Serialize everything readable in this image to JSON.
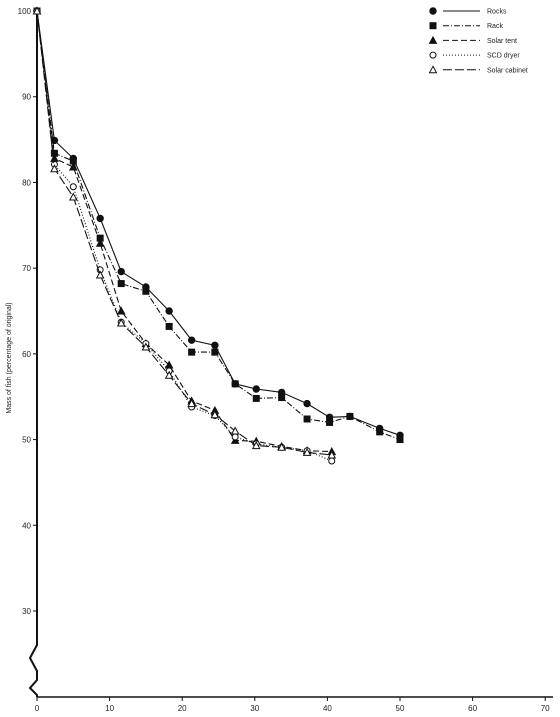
{
  "chart_data": {
    "type": "line",
    "title": "",
    "xlabel": "",
    "ylabel": "Mass of fish (percentage of original)",
    "xlim": [
      0,
      70
    ],
    "ylim": [
      20,
      100
    ],
    "y_axis_break": true,
    "x_ticks": [
      "0",
      "10",
      "20",
      "30",
      "40",
      "50",
      "60",
      "70"
    ],
    "y_ticks": [
      "30",
      "40",
      "50",
      "60",
      "70",
      "80",
      "90",
      "100"
    ],
    "y_tick_values": [
      30,
      40,
      50,
      60,
      70,
      80,
      90,
      100
    ],
    "x_tick_values": [
      0,
      10,
      20,
      30,
      40,
      50,
      60,
      70
    ],
    "grid": false,
    "legend_position": "top-right",
    "series": [
      {
        "name": "Rocks",
        "marker": "circle-filled",
        "dash": "solid",
        "x": [
          0,
          2.4,
          5,
          8.7,
          11.6,
          15,
          18.2,
          21.3,
          24.5,
          27.3,
          30.2,
          33.7,
          37.2,
          40.3,
          43.1,
          47.2,
          50
        ],
        "y": [
          100,
          84.9,
          82.8,
          75.8,
          69.6,
          67.8,
          65.0,
          61.6,
          61.0,
          56.5,
          55.9,
          55.5,
          54.2,
          52.6,
          52.7,
          51.3,
          50.5
        ]
      },
      {
        "name": "Rack",
        "marker": "square-filled",
        "dash": "dashdot",
        "x": [
          0,
          2.4,
          5,
          8.7,
          11.6,
          15,
          18.2,
          21.3,
          24.5,
          27.3,
          30.2,
          33.7,
          37.2,
          40.3,
          43.1,
          47.2,
          50
        ],
        "y": [
          100,
          83.4,
          82.5,
          73.5,
          68.2,
          67.3,
          63.2,
          60.2,
          60.2,
          56.5,
          54.8,
          54.9,
          52.4,
          52.0,
          52.7,
          50.9,
          50.0
        ]
      },
      {
        "name": "Solar tent",
        "marker": "triangle-filled",
        "dash": "dashed",
        "x": [
          0,
          2.4,
          5,
          8.7,
          11.6,
          15,
          18.2,
          21.3,
          24.5,
          27.3,
          30.2,
          33.7,
          37.2,
          40.6
        ],
        "y": [
          100,
          82.8,
          81.8,
          72.9,
          65.0,
          61.2,
          58.7,
          54.5,
          53.4,
          49.9,
          49.8,
          49.2,
          48.7,
          48.6
        ]
      },
      {
        "name": "SCD dryer",
        "marker": "circle-open",
        "dash": "dotted",
        "x": [
          0,
          2.4,
          5,
          8.7,
          11.6,
          15,
          18.2,
          21.3,
          24.5,
          27.3,
          30.2,
          33.7,
          37.2,
          40.6
        ],
        "y": [
          100,
          82.1,
          79.5,
          69.8,
          63.7,
          61.2,
          58.0,
          53.8,
          52.8,
          50.3,
          49.5,
          49.1,
          48.7,
          47.5
        ]
      },
      {
        "name": "Solar cabinet",
        "marker": "triangle-open",
        "dash": "longdash",
        "x": [
          0,
          2.4,
          5,
          8.7,
          11.6,
          15,
          18.2,
          21.3,
          24.5,
          27.3,
          30.2,
          33.7,
          37.2,
          40.6
        ],
        "y": [
          100,
          81.6,
          78.3,
          69.2,
          63.6,
          60.8,
          57.5,
          54.2,
          52.9,
          51.0,
          49.3,
          49.1,
          48.5,
          48.2
        ]
      }
    ]
  }
}
